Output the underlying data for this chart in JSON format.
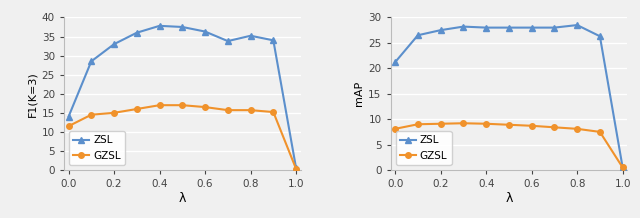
{
  "lambda_values": [
    0.0,
    0.1,
    0.2,
    0.3,
    0.4,
    0.5,
    0.6,
    0.7,
    0.8,
    0.9,
    1.0
  ],
  "left": {
    "zsl": [
      14.0,
      28.5,
      33.0,
      36.0,
      37.8,
      37.5,
      36.3,
      33.8,
      35.2,
      34.0,
      0.5
    ],
    "gzsl": [
      11.5,
      14.5,
      15.0,
      16.0,
      17.0,
      17.0,
      16.5,
      15.7,
      15.7,
      15.2,
      0.3
    ],
    "ylabel": "F1(K=3)",
    "ylim": [
      0,
      40
    ],
    "yticks": [
      0,
      5,
      10,
      15,
      20,
      25,
      30,
      35,
      40
    ],
    "xlabel": "λ"
  },
  "right": {
    "zsl": [
      21.2,
      26.5,
      27.5,
      28.2,
      28.0,
      28.0,
      28.0,
      28.0,
      28.5,
      26.3,
      0.5
    ],
    "gzsl": [
      8.1,
      9.0,
      9.1,
      9.2,
      9.1,
      8.9,
      8.7,
      8.4,
      8.1,
      7.5,
      0.5
    ],
    "ylabel": "mAP",
    "ylim": [
      0,
      30
    ],
    "yticks": [
      0,
      5,
      10,
      15,
      20,
      25,
      30
    ],
    "xlabel": "λ"
  },
  "zsl_color": "#5b8fcc",
  "gzsl_color": "#f0922b",
  "zsl_label": "ZSL",
  "gzsl_label": "GZSL",
  "marker_zsl": "^",
  "marker_gzsl": "o",
  "xticks": [
    0.0,
    0.2,
    0.4,
    0.6,
    0.8,
    1.0
  ],
  "bg_color": "#f0f0f0",
  "grid_color": "#ffffff",
  "figure_bg": "#f0f0f0"
}
